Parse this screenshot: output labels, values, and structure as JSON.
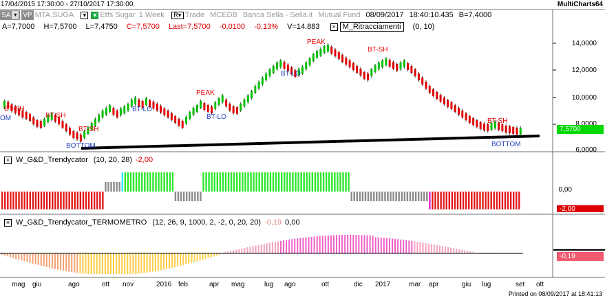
{
  "window": {
    "date_range": "17/04/2015 17:30:00 - 27/10/2017 17:30:00",
    "app_name": "MultiCharts64"
  },
  "header": {
    "sa_label": "SA",
    "vp_label": "VP",
    "symbol": "MTA.SUGA",
    "etfs": "Etfs Sugar",
    "interval": "1 Week",
    "r_label": "R",
    "trade": "Trade",
    "mcedb": "MCEDB",
    "broker": "Banca Sella - Sella.it",
    "fund": "Mutual Fund",
    "date": "08/09/2017",
    "time": "18:40:10.435",
    "b_value": "B=7,4000"
  },
  "ohlc": {
    "a": "A=7,7000",
    "h": "H=7,5700",
    "l": "L=7,4750",
    "c": "C=7,5700",
    "last": "Last=7,5700",
    "change": "-0,0100",
    "change_pct": "-0,13%",
    "volume": "V=14.883",
    "study": "M_Ritracciamenti",
    "study_params": "(0,  10)"
  },
  "price_axis": {
    "labels": [
      "14,0000",
      "12,0000",
      "10,0000",
      "8,0000",
      "6,0000"
    ],
    "last_tag": "7,5700",
    "last_tag_color": "#00cc00"
  },
  "annotations": [
    {
      "text": "BT-SH",
      "kind": "r"
    },
    {
      "text": "OM",
      "kind": "b"
    },
    {
      "text": "BT-SH",
      "kind": "r"
    },
    {
      "text": "BT-SH",
      "kind": "r"
    },
    {
      "text": "BOTTOM",
      "kind": "b"
    },
    {
      "text": "BT-LO",
      "kind": "b"
    },
    {
      "text": "PEAK",
      "kind": "r"
    },
    {
      "text": "BT-LO",
      "kind": "b"
    },
    {
      "text": "BT-LO",
      "kind": "b"
    },
    {
      "text": "PEAK",
      "kind": "r"
    },
    {
      "text": "BT-SH",
      "kind": "r"
    },
    {
      "text": "BT-SH",
      "kind": "r"
    },
    {
      "text": "BOTTOM",
      "kind": "b"
    }
  ],
  "trendycator": {
    "name": "W_G&D_Trendycator",
    "params": "(10,  20,  28)",
    "value": "-2,00",
    "axis_label": "0,00",
    "tag": "-2,00",
    "colors": {
      "red": "#e11a1a",
      "gray": "#8a8a8a",
      "green": "#2ee62e",
      "cyan": "#33e6ff",
      "magenta": "#e020e0"
    }
  },
  "termometro": {
    "name": "W_G&D_Trendycator_TERMOMETRO",
    "params": "(12,  26,  9,  1000,  2,  -2,  0,  20,  20)",
    "value1": "-0,19",
    "value2": "0,00",
    "tag": "-0,19"
  },
  "time_axis": {
    "labels": [
      "mag",
      "giu",
      "ago",
      "ott",
      "nov",
      "2016",
      "feb",
      "apr",
      "mag",
      "lug",
      "ago",
      "ott",
      "dic",
      "2017",
      "mar",
      "apr",
      "giu",
      "lug",
      "set",
      "ott"
    ]
  },
  "footer": "Printed on 08/09/2017 at 18:41:13"
}
